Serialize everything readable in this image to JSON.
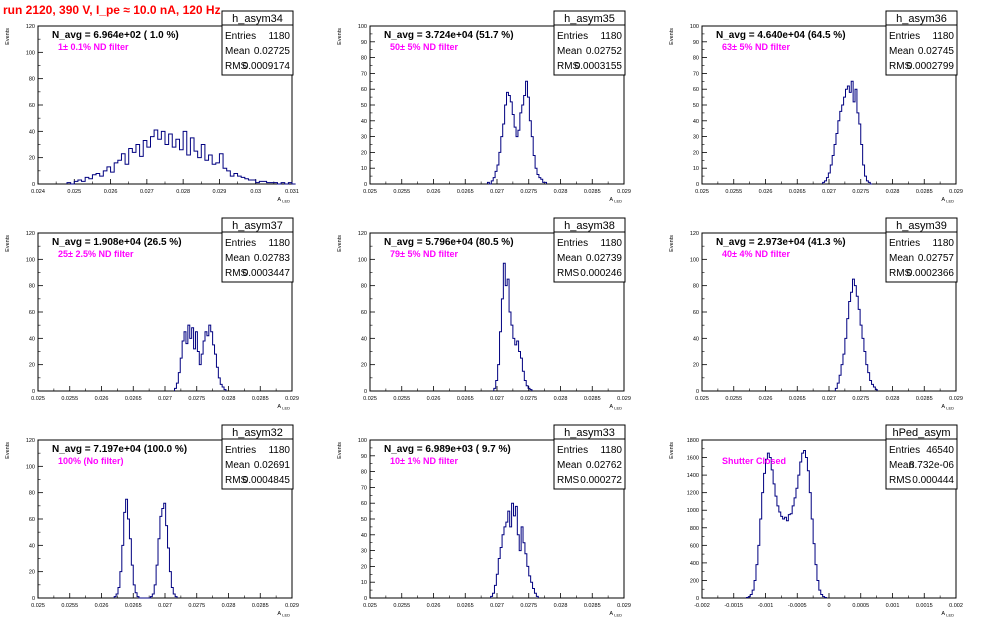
{
  "title": "run 2120,   390 V, I_pe ≈ 10.0 nA, 120 Hz",
  "common": {
    "ylabel": "Events",
    "xlabel": "A",
    "xlabel_sub": "LED"
  },
  "stat_labels": {
    "entries": "Entries",
    "mean": "Mean",
    "rms": "RMS"
  },
  "colors": {
    "hist_line": "#000080",
    "annotation": "#ff00ff",
    "title": "#ff0000"
  },
  "chart_data": [
    {
      "type": "histogram",
      "name": "h_asym34",
      "navg_text": "N_avg = 6.964e+02 ( 1.0 %)",
      "annotation": "1± 0.1% ND filter",
      "entries": "1180",
      "mean": "0.02725",
      "rms": "0.0009174",
      "xlim": [
        0.024,
        0.031
      ],
      "ylim": [
        0,
        120
      ],
      "xticks": [
        {
          "v": 0.024,
          "t": "0.024"
        },
        {
          "v": 0.025,
          "t": "0.025"
        },
        {
          "v": 0.026,
          "t": "0.026"
        },
        {
          "v": 0.027,
          "t": "0.027"
        },
        {
          "v": 0.028,
          "t": "0.028"
        },
        {
          "v": 0.029,
          "t": "0.029"
        },
        {
          "v": 0.03,
          "t": "0.03"
        },
        {
          "v": 0.031,
          "t": "0.031"
        }
      ],
      "yticks": [
        0,
        20,
        40,
        60,
        80,
        100,
        120
      ],
      "bin_start": 0.0248,
      "bin_width": 0.0001,
      "counts": [
        1,
        0,
        2,
        3,
        2,
        5,
        4,
        7,
        8,
        6,
        10,
        13,
        9,
        16,
        18,
        23,
        15,
        27,
        24,
        30,
        21,
        33,
        28,
        36,
        41,
        34,
        40,
        30,
        38,
        28,
        34,
        26,
        40,
        22,
        35,
        25,
        20,
        30,
        18,
        22,
        15,
        16,
        23,
        12,
        10,
        6,
        8,
        6,
        5,
        4,
        3,
        3,
        1,
        2,
        2,
        1,
        1,
        1,
        0,
        1,
        0,
        1,
        0
      ]
    },
    {
      "type": "histogram",
      "name": "h_asym35",
      "navg_text": "N_avg = 3.724e+04 (51.7 %)",
      "annotation": "50± 5% ND filter",
      "entries": "1180",
      "mean": "0.02752",
      "rms": "0.0003155",
      "xlim": [
        0.025,
        0.029
      ],
      "ylim": [
        0,
        100
      ],
      "xticks": [
        {
          "v": 0.025,
          "t": "0.025"
        },
        {
          "v": 0.0255,
          "t": "0.0255"
        },
        {
          "v": 0.026,
          "t": "0.026"
        },
        {
          "v": 0.0265,
          "t": "0.0265"
        },
        {
          "v": 0.027,
          "t": "0.027"
        },
        {
          "v": 0.0275,
          "t": "0.0275"
        },
        {
          "v": 0.028,
          "t": "0.028"
        },
        {
          "v": 0.0285,
          "t": "0.0285"
        },
        {
          "v": 0.029,
          "t": "0.029"
        }
      ],
      "yticks": [
        0,
        10,
        20,
        30,
        40,
        50,
        60,
        70,
        80,
        90,
        100
      ],
      "bin_start": 0.02685,
      "bin_width": 3e-05,
      "counts": [
        1,
        0,
        2,
        4,
        8,
        12,
        20,
        30,
        38,
        50,
        58,
        56,
        52,
        44,
        36,
        30,
        34,
        45,
        50,
        56,
        65,
        55,
        40,
        30,
        18,
        10,
        6,
        4,
        3,
        1,
        1
      ]
    },
    {
      "type": "histogram",
      "name": "h_asym36",
      "navg_text": "N_avg = 4.640e+04 (64.5 %)",
      "annotation": "63± 5% ND filter",
      "entries": "1180",
      "mean": "0.02745",
      "rms": "0.0002799",
      "xlim": [
        0.025,
        0.029
      ],
      "ylim": [
        0,
        100
      ],
      "xticks": [
        {
          "v": 0.025,
          "t": "0.025"
        },
        {
          "v": 0.0255,
          "t": "0.0255"
        },
        {
          "v": 0.026,
          "t": "0.026"
        },
        {
          "v": 0.0265,
          "t": "0.0265"
        },
        {
          "v": 0.027,
          "t": "0.027"
        },
        {
          "v": 0.0275,
          "t": "0.0275"
        },
        {
          "v": 0.028,
          "t": "0.028"
        },
        {
          "v": 0.0285,
          "t": "0.0285"
        },
        {
          "v": 0.029,
          "t": "0.029"
        }
      ],
      "yticks": [
        0,
        10,
        20,
        30,
        40,
        50,
        60,
        70,
        80,
        90,
        100
      ],
      "bin_start": 0.0269,
      "bin_width": 3e-05,
      "counts": [
        1,
        2,
        4,
        7,
        12,
        18,
        25,
        32,
        40,
        46,
        50,
        55,
        60,
        62,
        58,
        65,
        52,
        60,
        45,
        38,
        25,
        12,
        5,
        2,
        1,
        0
      ]
    },
    {
      "type": "histogram",
      "name": "h_asym37",
      "navg_text": "N_avg = 1.908e+04 (26.5 %)",
      "annotation": "25± 2.5% ND filter",
      "entries": "1180",
      "mean": "0.02783",
      "rms": "0.0003447",
      "xlim": [
        0.025,
        0.029
      ],
      "ylim": [
        0,
        120
      ],
      "xticks": [
        {
          "v": 0.025,
          "t": "0.025"
        },
        {
          "v": 0.0255,
          "t": "0.0255"
        },
        {
          "v": 0.026,
          "t": "0.026"
        },
        {
          "v": 0.0265,
          "t": "0.0265"
        },
        {
          "v": 0.027,
          "t": "0.027"
        },
        {
          "v": 0.0275,
          "t": "0.0275"
        },
        {
          "v": 0.028,
          "t": "0.028"
        },
        {
          "v": 0.0285,
          "t": "0.0285"
        },
        {
          "v": 0.029,
          "t": "0.029"
        }
      ],
      "yticks": [
        0,
        20,
        40,
        60,
        80,
        100,
        120
      ],
      "bin_start": 0.02715,
      "bin_width": 3e-05,
      "counts": [
        2,
        6,
        14,
        25,
        38,
        45,
        36,
        50,
        40,
        48,
        32,
        45,
        30,
        20,
        28,
        38,
        45,
        42,
        50,
        45,
        35,
        28,
        18,
        10,
        5,
        3,
        1
      ]
    },
    {
      "type": "histogram",
      "name": "h_asym38",
      "navg_text": "N_avg = 5.796e+04 (80.5 %)",
      "annotation": "79± 5% ND filter",
      "entries": "1180",
      "mean": "0.02739",
      "rms": "0.000246",
      "xlim": [
        0.025,
        0.029
      ],
      "ylim": [
        0,
        120
      ],
      "xticks": [
        {
          "v": 0.025,
          "t": "0.025"
        },
        {
          "v": 0.0255,
          "t": "0.0255"
        },
        {
          "v": 0.026,
          "t": "0.026"
        },
        {
          "v": 0.0265,
          "t": "0.0265"
        },
        {
          "v": 0.027,
          "t": "0.027"
        },
        {
          "v": 0.0275,
          "t": "0.0275"
        },
        {
          "v": 0.028,
          "t": "0.028"
        },
        {
          "v": 0.0285,
          "t": "0.0285"
        },
        {
          "v": 0.029,
          "t": "0.029"
        }
      ],
      "yticks": [
        0,
        20,
        40,
        60,
        80,
        100,
        120
      ],
      "bin_start": 0.02695,
      "bin_width": 3e-05,
      "counts": [
        2,
        8,
        20,
        45,
        70,
        97,
        80,
        85,
        60,
        50,
        40,
        35,
        38,
        30,
        25,
        15,
        8,
        4,
        2,
        1
      ]
    },
    {
      "type": "histogram",
      "name": "h_asym39",
      "navg_text": "N_avg = 2.973e+04 (41.3 %)",
      "annotation": "40± 4% ND filter",
      "entries": "1180",
      "mean": "0.02757",
      "rms": "0.0002366",
      "xlim": [
        0.025,
        0.029
      ],
      "ylim": [
        0,
        120
      ],
      "xticks": [
        {
          "v": 0.025,
          "t": "0.025"
        },
        {
          "v": 0.0255,
          "t": "0.0255"
        },
        {
          "v": 0.026,
          "t": "0.026"
        },
        {
          "v": 0.0265,
          "t": "0.0265"
        },
        {
          "v": 0.027,
          "t": "0.027"
        },
        {
          "v": 0.0275,
          "t": "0.0275"
        },
        {
          "v": 0.028,
          "t": "0.028"
        },
        {
          "v": 0.0285,
          "t": "0.0285"
        },
        {
          "v": 0.029,
          "t": "0.029"
        }
      ],
      "yticks": [
        0,
        20,
        40,
        60,
        80,
        100,
        120
      ],
      "bin_start": 0.0271,
      "bin_width": 3e-05,
      "counts": [
        2,
        6,
        12,
        20,
        28,
        40,
        55,
        68,
        75,
        85,
        80,
        72,
        62,
        50,
        40,
        30,
        20,
        14,
        8,
        5,
        3,
        1
      ]
    },
    {
      "type": "histogram",
      "name": "h_asym32",
      "navg_text": "N_avg = 7.197e+04 (100.0 %)",
      "annotation": "100% (No filter)",
      "entries": "1180",
      "mean": "0.02691",
      "rms": "0.0004845",
      "xlim": [
        0.025,
        0.029
      ],
      "ylim": [
        0,
        120
      ],
      "xticks": [
        {
          "v": 0.025,
          "t": "0.025"
        },
        {
          "v": 0.0255,
          "t": "0.0255"
        },
        {
          "v": 0.026,
          "t": "0.026"
        },
        {
          "v": 0.0265,
          "t": "0.0265"
        },
        {
          "v": 0.027,
          "t": "0.027"
        },
        {
          "v": 0.0275,
          "t": "0.0275"
        },
        {
          "v": 0.028,
          "t": "0.028"
        },
        {
          "v": 0.0285,
          "t": "0.0285"
        },
        {
          "v": 0.029,
          "t": "0.029"
        }
      ],
      "yticks": [
        0,
        20,
        40,
        60,
        80,
        100,
        120
      ],
      "bin_start": 0.0262,
      "bin_width": 3e-05,
      "counts": [
        1,
        3,
        8,
        20,
        40,
        65,
        75,
        60,
        45,
        25,
        10,
        4,
        1,
        0,
        0,
        0,
        0,
        0,
        0,
        1,
        3,
        10,
        25,
        45,
        62,
        68,
        72,
        55,
        38,
        20,
        8,
        3,
        1
      ]
    },
    {
      "type": "histogram",
      "name": "h_asym33",
      "navg_text": "N_avg = 6.989e+03 ( 9.7 %)",
      "annotation": "10± 1% ND filter",
      "entries": "1180",
      "mean": "0.02762",
      "rms": "0.000272",
      "xlim": [
        0.025,
        0.029
      ],
      "ylim": [
        0,
        100
      ],
      "xticks": [
        {
          "v": 0.025,
          "t": "0.025"
        },
        {
          "v": 0.0255,
          "t": "0.0255"
        },
        {
          "v": 0.026,
          "t": "0.026"
        },
        {
          "v": 0.0265,
          "t": "0.0265"
        },
        {
          "v": 0.027,
          "t": "0.027"
        },
        {
          "v": 0.0275,
          "t": "0.0275"
        },
        {
          "v": 0.028,
          "t": "0.028"
        },
        {
          "v": 0.0285,
          "t": "0.0285"
        },
        {
          "v": 0.029,
          "t": "0.029"
        }
      ],
      "yticks": [
        0,
        10,
        20,
        30,
        40,
        50,
        60,
        70,
        80,
        90,
        100
      ],
      "bin_start": 0.0269,
      "bin_width": 3e-05,
      "counts": [
        1,
        3,
        8,
        15,
        25,
        32,
        40,
        45,
        48,
        55,
        45,
        60,
        52,
        58,
        40,
        30,
        45,
        35,
        28,
        20,
        14,
        10,
        6,
        3,
        1
      ]
    },
    {
      "type": "histogram",
      "name": "hPed_asym",
      "navg_text": "",
      "annotation": "Shutter Closed",
      "entries": "46540",
      "mean": "8.732e-06",
      "rms": "0.000444",
      "xlim": [
        -0.002,
        0.002
      ],
      "ylim": [
        0,
        1800
      ],
      "xticks": [
        {
          "v": -0.002,
          "t": "-0.002"
        },
        {
          "v": -0.0015,
          "t": "-0.0015"
        },
        {
          "v": -0.001,
          "t": "-0.001"
        },
        {
          "v": -0.0005,
          "t": "-0.0005"
        },
        {
          "v": 0,
          "t": "0"
        },
        {
          "v": 0.0005,
          "t": "0.0005"
        },
        {
          "v": 0.001,
          "t": "0.001"
        },
        {
          "v": 0.0015,
          "t": "0.0015"
        },
        {
          "v": 0.002,
          "t": "0.002"
        }
      ],
      "yticks": [
        0,
        200,
        400,
        600,
        800,
        1000,
        1200,
        1400,
        1600,
        1800
      ],
      "bin_start": -0.0013,
      "bin_width": 3e-05,
      "counts": [
        5,
        15,
        40,
        90,
        200,
        380,
        600,
        900,
        1200,
        1420,
        1580,
        1650,
        1600,
        1460,
        1300,
        1160,
        1050,
        980,
        930,
        900,
        920,
        880,
        950,
        960,
        1050,
        1140,
        1250,
        1400,
        1550,
        1650,
        1680,
        1600,
        1450,
        1200,
        900,
        620,
        380,
        200,
        90,
        40,
        15,
        5
      ]
    }
  ]
}
